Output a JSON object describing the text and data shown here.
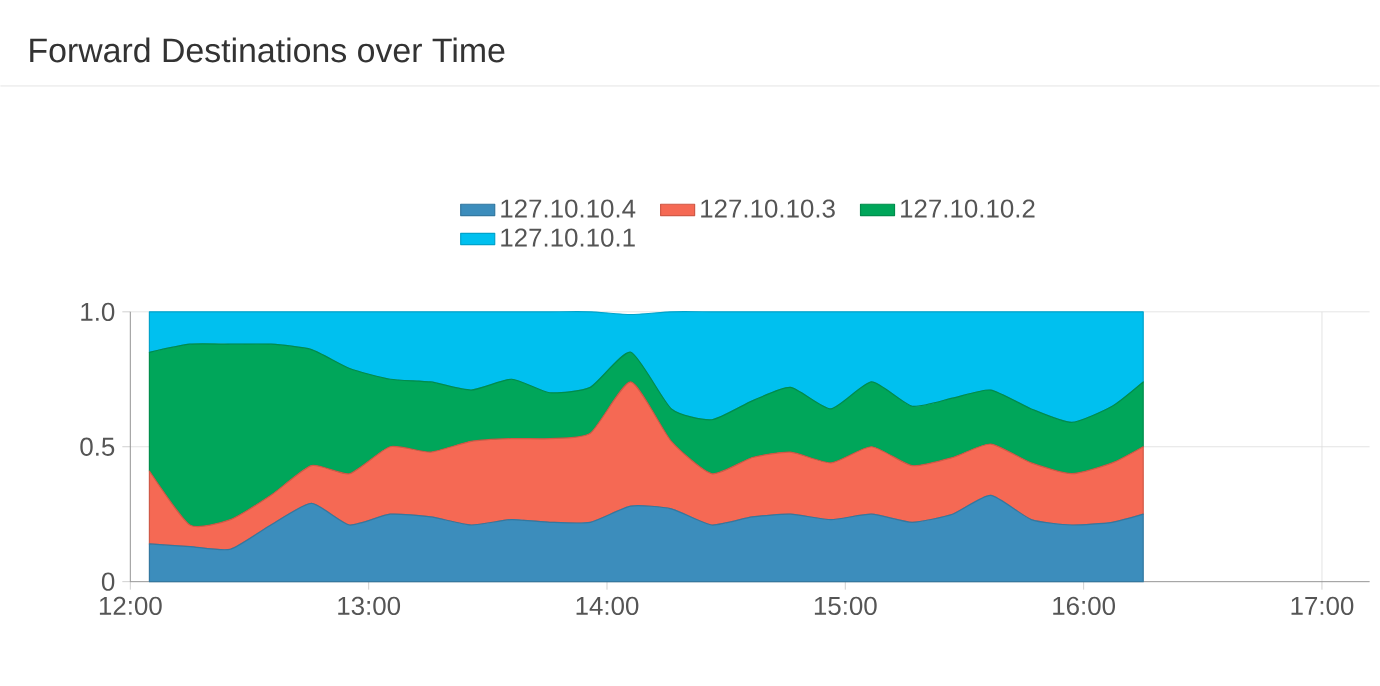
{
  "chart_data": {
    "type": "area",
    "stacked": true,
    "title": "Forward Destinations over Time",
    "x": [
      12.08,
      12.25,
      12.42,
      12.59,
      12.76,
      12.92,
      13.09,
      13.26,
      13.43,
      13.6,
      13.76,
      13.93,
      14.1,
      14.27,
      14.44,
      14.61,
      14.77,
      14.94,
      15.11,
      15.28,
      15.45,
      15.61,
      15.78,
      15.95,
      16.12,
      16.25
    ],
    "series": [
      {
        "name": "127.10.10.4",
        "color": "#3c8dbc",
        "values": [
          0.14,
          0.13,
          0.12,
          0.21,
          0.29,
          0.21,
          0.25,
          0.24,
          0.21,
          0.23,
          0.22,
          0.22,
          0.28,
          0.27,
          0.21,
          0.24,
          0.25,
          0.23,
          0.25,
          0.22,
          0.25,
          0.32,
          0.23,
          0.21,
          0.22,
          0.25
        ]
      },
      {
        "name": "127.10.10.3",
        "color": "#f56954",
        "values": [
          0.27,
          0.08,
          0.11,
          0.11,
          0.14,
          0.19,
          0.25,
          0.24,
          0.31,
          0.3,
          0.31,
          0.33,
          0.46,
          0.25,
          0.19,
          0.22,
          0.23,
          0.21,
          0.25,
          0.21,
          0.21,
          0.19,
          0.21,
          0.19,
          0.22,
          0.25
        ]
      },
      {
        "name": "127.10.10.2",
        "color": "#00a65a",
        "values": [
          0.44,
          0.67,
          0.65,
          0.56,
          0.43,
          0.39,
          0.25,
          0.26,
          0.19,
          0.22,
          0.17,
          0.17,
          0.11,
          0.12,
          0.2,
          0.21,
          0.24,
          0.2,
          0.24,
          0.22,
          0.22,
          0.2,
          0.2,
          0.19,
          0.21,
          0.24
        ]
      },
      {
        "name": "127.10.10.1",
        "color": "#00c0ef",
        "values": [
          0.15,
          0.12,
          0.12,
          0.12,
          0.14,
          0.21,
          0.25,
          0.26,
          0.29,
          0.25,
          0.3,
          0.28,
          0.14,
          0.36,
          0.4,
          0.33,
          0.28,
          0.36,
          0.26,
          0.35,
          0.32,
          0.29,
          0.36,
          0.41,
          0.35,
          0.26
        ]
      }
    ],
    "xlim": [
      12,
      17.2
    ],
    "xticks": [
      {
        "value": 12,
        "label": "12:00"
      },
      {
        "value": 13,
        "label": "13:00"
      },
      {
        "value": 14,
        "label": "14:00"
      },
      {
        "value": 15,
        "label": "15:00"
      },
      {
        "value": 16,
        "label": "16:00"
      },
      {
        "value": 17,
        "label": "17:00"
      }
    ],
    "ylim": [
      0,
      1
    ],
    "yticks": [
      0,
      0.5,
      {
        "value": 1,
        "label": "1.0"
      }
    ],
    "grid": true,
    "legend": "top"
  }
}
